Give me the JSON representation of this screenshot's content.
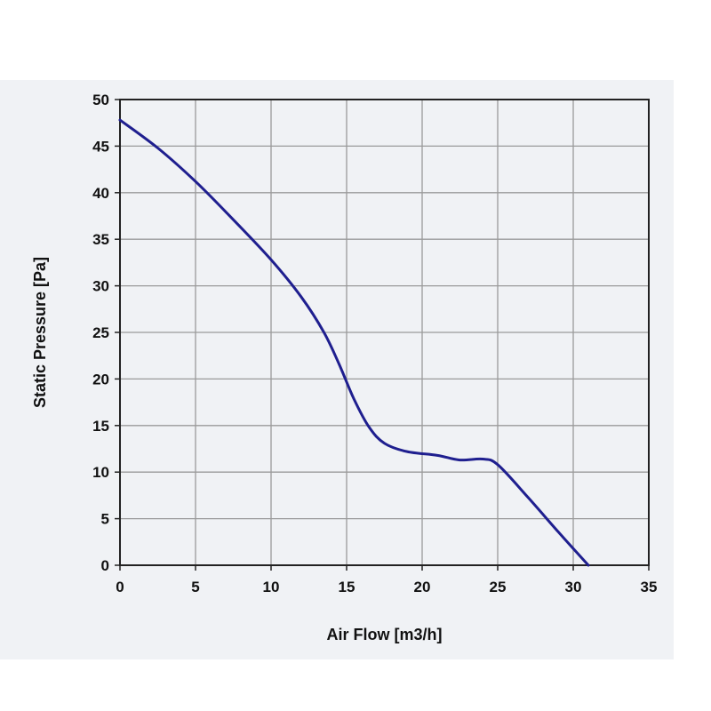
{
  "chart_data": {
    "type": "line",
    "title": "",
    "xlabel": "Air Flow [m3/h]",
    "ylabel": "Static Pressure [Pa]",
    "xlim": [
      0,
      35
    ],
    "ylim": [
      0,
      50
    ],
    "xticks": [
      "0",
      "5",
      "10",
      "15",
      "20",
      "25",
      "30",
      "35"
    ],
    "yticks": [
      "0",
      "5",
      "10",
      "15",
      "20",
      "25",
      "30",
      "35",
      "40",
      "45",
      "50"
    ],
    "grid": true,
    "legend": "none",
    "series": [
      {
        "color": "#1f1f8f",
        "x": [
          0,
          2.5,
          5,
          7.5,
          10,
          12,
          13.5,
          14.5,
          15.5,
          16.5,
          17.5,
          19,
          21,
          22.5,
          24,
          25,
          27,
          29,
          31
        ],
        "y": [
          47.8,
          44.8,
          41.2,
          37.1,
          32.8,
          28.8,
          25,
          21.6,
          17.8,
          14.8,
          13.1,
          12.2,
          11.8,
          11.3,
          11.4,
          10.8,
          7.3,
          3.6,
          0
        ]
      }
    ]
  }
}
